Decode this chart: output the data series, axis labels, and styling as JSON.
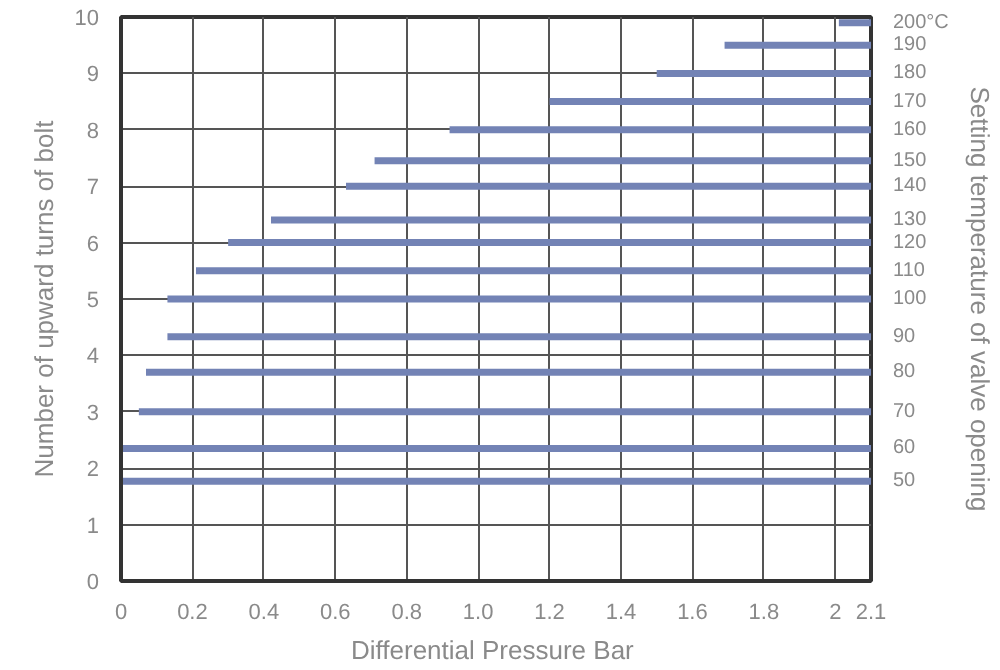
{
  "chart_data": {
    "type": "line",
    "xlabel": "Differential Pressure  Bar",
    "ylabel": "Number of upward turns of bolt",
    "y2label": "Setting temperature of valve opening",
    "xlim": [
      0,
      2.1
    ],
    "xticks": [
      0,
      0.2,
      0.4,
      0.6,
      0.8,
      {
        "value": 1.0,
        "label": "1.0"
      },
      1.2,
      1.4,
      1.6,
      1.8,
      {
        "value": 2,
        "label": "2"
      },
      2.1
    ],
    "ylim": [
      0,
      10
    ],
    "yticks": [
      0,
      1,
      2,
      3,
      4,
      5,
      6,
      7,
      8,
      9,
      10
    ],
    "grid": true,
    "marker": "none",
    "line_style": "solid",
    "series": [
      {
        "name": "200°C",
        "color": "#7383b5",
        "x": [
          2.01,
          2.1
        ],
        "values": [
          9.9,
          9.9
        ]
      },
      {
        "name": "190",
        "color": "#7383b5",
        "x": [
          1.69,
          2.1
        ],
        "values": [
          9.5,
          9.5
        ]
      },
      {
        "name": "180",
        "color": "#7383b5",
        "x": [
          1.5,
          2.1
        ],
        "values": [
          9.0,
          9.0
        ]
      },
      {
        "name": "170",
        "color": "#7383b5",
        "x": [
          1.2,
          2.1
        ],
        "values": [
          8.5,
          8.5
        ]
      },
      {
        "name": "160",
        "color": "#7383b5",
        "x": [
          0.92,
          2.1
        ],
        "values": [
          8.0,
          8.0
        ]
      },
      {
        "name": "150",
        "color": "#7383b5",
        "x": [
          0.71,
          2.1
        ],
        "values": [
          7.45,
          7.45
        ]
      },
      {
        "name": "140",
        "color": "#7383b5",
        "x": [
          0.63,
          2.1
        ],
        "values": [
          7.0,
          7.0
        ]
      },
      {
        "name": "130",
        "color": "#7383b5",
        "x": [
          0.42,
          2.1
        ],
        "values": [
          6.4,
          6.4
        ]
      },
      {
        "name": "120",
        "color": "#7383b5",
        "x": [
          0.3,
          2.1
        ],
        "values": [
          6.0,
          6.0
        ]
      },
      {
        "name": "110",
        "color": "#7383b5",
        "x": [
          0.21,
          2.1
        ],
        "values": [
          5.5,
          5.5
        ]
      },
      {
        "name": "100",
        "color": "#7383b5",
        "x": [
          0.13,
          2.1
        ],
        "values": [
          5.0,
          5.0
        ]
      },
      {
        "name": "90",
        "color": "#7383b5",
        "x": [
          0.13,
          2.1
        ],
        "values": [
          4.33,
          4.33
        ]
      },
      {
        "name": "80",
        "color": "#7383b5",
        "x": [
          0.07,
          2.1
        ],
        "values": [
          3.7,
          3.7
        ]
      },
      {
        "name": "70",
        "color": "#7383b5",
        "x": [
          0.05,
          2.1
        ],
        "values": [
          3.0,
          3.0
        ]
      },
      {
        "name": "60",
        "color": "#7383b5",
        "x": [
          0.0,
          2.1
        ],
        "values": [
          2.35,
          2.35
        ]
      },
      {
        "name": "50",
        "color": "#7383b5",
        "x": [
          0.0,
          2.1
        ],
        "values": [
          1.77,
          1.77
        ]
      }
    ]
  }
}
